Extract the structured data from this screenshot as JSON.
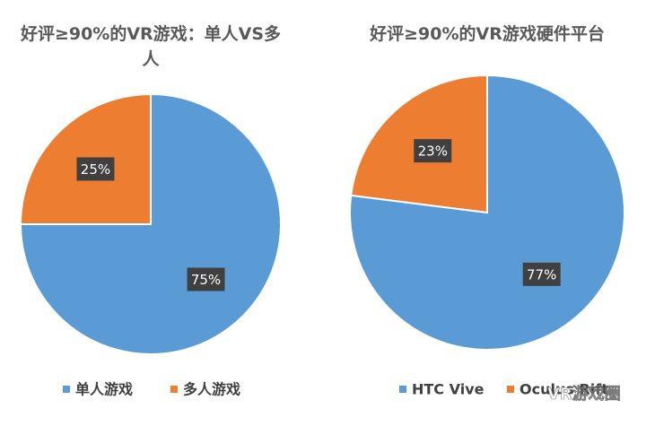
{
  "chart_data": [
    {
      "type": "pie",
      "title": "好评≥90%的VR游戏：单人VS多人",
      "categories": [
        "单人游戏",
        "多人游戏"
      ],
      "values": [
        75,
        25
      ],
      "value_labels": [
        "75%",
        "25%"
      ],
      "colors": [
        "#5b9bd5",
        "#ed7d31"
      ],
      "legend": "bottom"
    },
    {
      "type": "pie",
      "title": "好评≥90%的VR游戏硬件平台",
      "categories": [
        "HTC Vive",
        "Oculus Rift"
      ],
      "values": [
        77,
        23
      ],
      "value_labels": [
        "77%",
        "23%"
      ],
      "colors": [
        "#5b9bd5",
        "#ed7d31"
      ],
      "legend": "bottom"
    }
  ],
  "watermark": "VR游戏圈"
}
